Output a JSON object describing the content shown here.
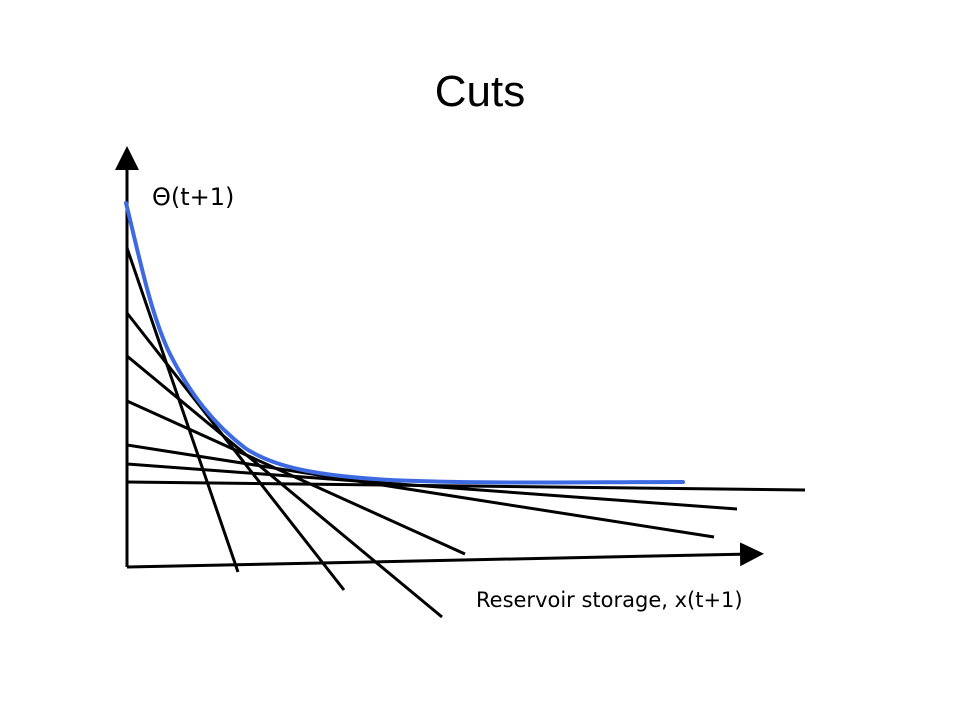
{
  "slide": {
    "title": "Cuts"
  },
  "diagram": {
    "y_axis_label": "Θ(t+1)",
    "x_axis_label": "Reservoir storage, x(t+1)",
    "colors": {
      "curve": "#3d6ae0",
      "cuts": "#000000",
      "axes": "#000000"
    },
    "cut_count": 7
  }
}
